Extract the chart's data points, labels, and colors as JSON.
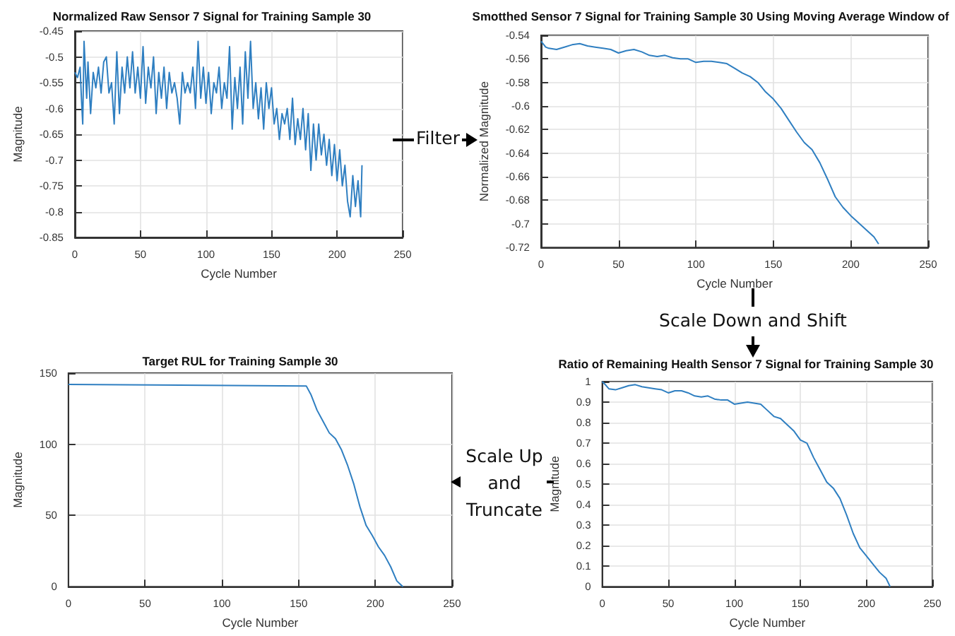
{
  "chart_data": [
    {
      "type": "line",
      "title": "Normalized Raw Sensor 7 Signal for Training Sample 30",
      "xlabel": "Cycle Number",
      "ylabel": "Magnitude",
      "annotations": [
        "Filter"
      ],
      "grid": true,
      "x": [
        0,
        2,
        4,
        5,
        6,
        7,
        9,
        10,
        12,
        14,
        16,
        18,
        20,
        22,
        24,
        26,
        28,
        30,
        32,
        34,
        36,
        38,
        40,
        42,
        44,
        46,
        48,
        50,
        52,
        54,
        56,
        58,
        60,
        62,
        64,
        66,
        68,
        70,
        72,
        74,
        76,
        78,
        80,
        82,
        84,
        86,
        88,
        90,
        92,
        94,
        96,
        98,
        100,
        102,
        104,
        106,
        108,
        110,
        112,
        114,
        116,
        118,
        120,
        122,
        124,
        126,
        128,
        130,
        132,
        134,
        136,
        138,
        140,
        142,
        144,
        146,
        148,
        150,
        152,
        154,
        156,
        158,
        160,
        162,
        164,
        166,
        168,
        170,
        172,
        174,
        176,
        178,
        180,
        182,
        184,
        186,
        188,
        190,
        192,
        194,
        196,
        198,
        200,
        202,
        204,
        206,
        208,
        210,
        212,
        214,
        216,
        218,
        219
      ],
      "series": [
        {
          "color": "#2f7fc1",
          "values": [
            -0.53,
            -0.54,
            -0.52,
            -0.58,
            -0.63,
            -0.47,
            -0.58,
            -0.51,
            -0.61,
            -0.53,
            -0.56,
            -0.52,
            -0.57,
            -0.51,
            -0.5,
            -0.57,
            -0.55,
            -0.63,
            -0.49,
            -0.61,
            -0.52,
            -0.57,
            -0.5,
            -0.56,
            -0.49,
            -0.57,
            -0.52,
            -0.58,
            -0.48,
            -0.59,
            -0.52,
            -0.56,
            -0.5,
            -0.61,
            -0.53,
            -0.58,
            -0.52,
            -0.6,
            -0.53,
            -0.57,
            -0.55,
            -0.58,
            -0.63,
            -0.53,
            -0.57,
            -0.55,
            -0.57,
            -0.52,
            -0.6,
            -0.47,
            -0.58,
            -0.52,
            -0.59,
            -0.53,
            -0.61,
            -0.55,
            -0.57,
            -0.52,
            -0.6,
            -0.55,
            -0.58,
            -0.48,
            -0.64,
            -0.54,
            -0.6,
            -0.52,
            -0.63,
            -0.49,
            -0.58,
            -0.47,
            -0.6,
            -0.55,
            -0.62,
            -0.56,
            -0.64,
            -0.55,
            -0.6,
            -0.56,
            -0.63,
            -0.6,
            -0.66,
            -0.61,
            -0.63,
            -0.6,
            -0.66,
            -0.58,
            -0.67,
            -0.62,
            -0.66,
            -0.6,
            -0.68,
            -0.61,
            -0.72,
            -0.63,
            -0.7,
            -0.63,
            -0.69,
            -0.65,
            -0.71,
            -0.66,
            -0.73,
            -0.67,
            -0.74,
            -0.68,
            -0.75,
            -0.71,
            -0.78,
            -0.81,
            -0.73,
            -0.79,
            -0.74,
            -0.81,
            -0.71
          ]
        }
      ],
      "xlim": [
        0,
        250
      ],
      "xticks": [
        0,
        50,
        100,
        150,
        200,
        250
      ],
      "ylim": [
        -0.85,
        -0.45
      ],
      "yticks": [
        -0.85,
        -0.8,
        -0.75,
        -0.7,
        -0.65,
        -0.6,
        -0.55,
        -0.5,
        -0.45
      ]
    },
    {
      "type": "line",
      "title": "Smotthed Sensor 7 Signal for Training Sample 30 Using Moving Average Window of",
      "xlabel": "Cycle Number",
      "ylabel": "Normalized Magnitude",
      "annotations": [
        "Scale Down and Shift"
      ],
      "grid": true,
      "x": [
        0,
        3,
        5,
        10,
        15,
        20,
        25,
        30,
        35,
        40,
        45,
        50,
        55,
        60,
        65,
        70,
        75,
        80,
        85,
        90,
        95,
        100,
        105,
        110,
        115,
        120,
        125,
        130,
        135,
        140,
        145,
        150,
        155,
        160,
        165,
        170,
        175,
        180,
        185,
        190,
        195,
        200,
        205,
        210,
        215,
        218
      ],
      "series": [
        {
          "color": "#2f7fc1",
          "values": [
            -0.545,
            -0.55,
            -0.551,
            -0.552,
            -0.55,
            -0.548,
            -0.547,
            -0.549,
            -0.55,
            -0.551,
            -0.552,
            -0.555,
            -0.553,
            -0.552,
            -0.554,
            -0.557,
            -0.558,
            -0.557,
            -0.559,
            -0.56,
            -0.56,
            -0.563,
            -0.562,
            -0.562,
            -0.563,
            -0.564,
            -0.568,
            -0.572,
            -0.575,
            -0.58,
            -0.588,
            -0.594,
            -0.602,
            -0.612,
            -0.622,
            -0.631,
            -0.637,
            -0.648,
            -0.662,
            -0.677,
            -0.686,
            -0.693,
            -0.699,
            -0.705,
            -0.711,
            -0.717
          ]
        }
      ],
      "xlim": [
        0,
        250
      ],
      "xticks": [
        0,
        50,
        100,
        150,
        200,
        250
      ],
      "ylim": [
        -0.72,
        -0.54
      ],
      "yticks": [
        -0.72,
        -0.7,
        -0.68,
        -0.66,
        -0.64,
        -0.62,
        -0.6,
        -0.58,
        -0.56,
        -0.54
      ]
    },
    {
      "type": "line",
      "title": "Target RUL for Training Sample 30",
      "xlabel": "Cycle Number",
      "ylabel": "Magnitude",
      "grid": true,
      "x": [
        0,
        155,
        158,
        162,
        166,
        170,
        174,
        178,
        182,
        186,
        190,
        194,
        198,
        202,
        206,
        210,
        214,
        216,
        218
      ],
      "series": [
        {
          "color": "#2f7fc1",
          "values": [
            142,
            141,
            135,
            124,
            116,
            108,
            104,
            96,
            85,
            72,
            56,
            43,
            36,
            28,
            22,
            14,
            4,
            2,
            0
          ]
        }
      ],
      "xlim": [
        0,
        250
      ],
      "xticks": [
        0,
        50,
        100,
        150,
        200,
        250
      ],
      "ylim": [
        0,
        150
      ],
      "yticks": [
        0,
        50,
        100,
        150
      ]
    },
    {
      "type": "line",
      "title": "Ratio of Remaining Health Sensor 7 Signal for Training Sample 30",
      "xlabel": "Cycle Number",
      "ylabel": "Magnitude",
      "annotations": [
        "Scale Up and Truncate"
      ],
      "grid": true,
      "x": [
        0,
        3,
        5,
        10,
        15,
        20,
        25,
        30,
        35,
        40,
        45,
        50,
        55,
        60,
        65,
        70,
        75,
        80,
        85,
        90,
        95,
        100,
        105,
        110,
        115,
        120,
        125,
        130,
        135,
        140,
        145,
        150,
        155,
        160,
        165,
        170,
        175,
        180,
        185,
        190,
        195,
        200,
        205,
        210,
        215,
        218
      ],
      "series": [
        {
          "color": "#2f7fc1",
          "values": [
            1,
            0.98,
            0.965,
            0.96,
            0.97,
            0.98,
            0.985,
            0.975,
            0.97,
            0.965,
            0.96,
            0.945,
            0.955,
            0.955,
            0.945,
            0.93,
            0.925,
            0.93,
            0.915,
            0.91,
            0.91,
            0.89,
            0.895,
            0.9,
            0.895,
            0.89,
            0.86,
            0.83,
            0.82,
            0.79,
            0.76,
            0.715,
            0.7,
            0.63,
            0.57,
            0.51,
            0.48,
            0.43,
            0.35,
            0.26,
            0.19,
            0.15,
            0.11,
            0.07,
            0.04,
            0
          ]
        }
      ],
      "xlim": [
        0,
        250
      ],
      "xticks": [
        0,
        50,
        100,
        150,
        200,
        250
      ],
      "ylim": [
        0,
        1
      ],
      "yticks": [
        0,
        0.1,
        0.2,
        0.3,
        0.4,
        0.5,
        0.6,
        0.7,
        0.8,
        0.9,
        1
      ]
    }
  ]
}
